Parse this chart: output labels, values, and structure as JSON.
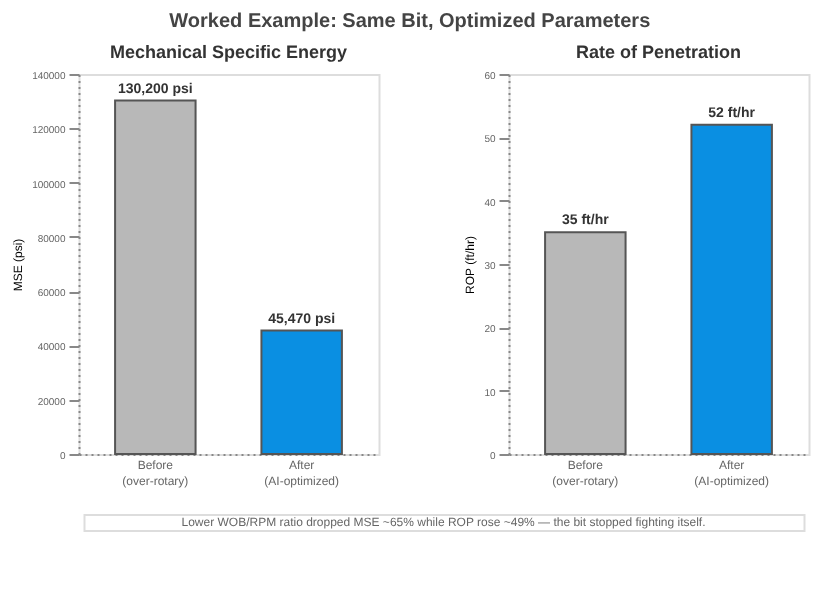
{
  "chart_data": [
    {
      "type": "bar",
      "title": "Mechanical Specific Energy",
      "ylabel": "MSE (psi)",
      "categories": [
        "Before\n(over-rotary)",
        "After\n(AI-optimized)"
      ],
      "values": [
        130200,
        45470
      ],
      "colors": [
        "#b8b8b8",
        "#0a8fe2"
      ],
      "value_labels": [
        "130,200 psi",
        "45,470 psi"
      ],
      "ylim": [
        0,
        140000
      ],
      "yticks": [
        0,
        20000,
        40000,
        60000,
        80000,
        100000,
        120000,
        140000
      ],
      "grid": false,
      "annotations": [
        "Worked Example: Same Bit, Optimized Parameters"
      ]
    },
    {
      "type": "bar",
      "title": "Rate of Penetration",
      "ylabel": "ROP (ft/hr)",
      "categories": [
        "Before\n(over-rotary)",
        "After\n(AI-optimized)"
      ],
      "values": [
        35,
        52
      ],
      "colors": [
        "#b8b8b8",
        "#0a8fe2"
      ],
      "value_labels": [
        "35 ft/hr",
        "52 ft/hr"
      ],
      "ylim": [
        0,
        60
      ],
      "yticks": [
        0,
        10,
        20,
        30,
        40,
        50,
        60
      ],
      "grid": false,
      "annotations": [
        "Lower WOB/RPM ratio dropped MSE ~65% while ROP rose ~49% — the bit stopped fighting itself."
      ]
    }
  ]
}
